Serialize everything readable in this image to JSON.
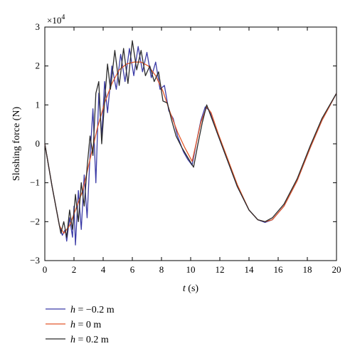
{
  "chart_data": {
    "type": "line",
    "xlabel": {
      "var": "t",
      "unit": " (s)"
    },
    "ylabel": "Sloshing force (N)",
    "y_multiplier": {
      "base": "×10",
      "exponent": "4"
    },
    "xlim": [
      0,
      20
    ],
    "ylim": [
      -3,
      3
    ],
    "xticks": [
      0,
      2,
      4,
      6,
      8,
      10,
      12,
      14,
      16,
      18,
      20
    ],
    "yticks": [
      -3,
      -2,
      -1,
      0,
      1,
      2,
      3
    ],
    "grid": false,
    "legend_position": "bottom-left, below plot",
    "series": [
      {
        "name": "h = −0.2 m",
        "legend": {
          "var": "h",
          "text": " = −0.2 m"
        },
        "color": "#3b3ba6",
        "points": [
          [
            0,
            0
          ],
          [
            0.5,
            -1.1
          ],
          [
            1,
            -2.1
          ],
          [
            1.2,
            -2.35
          ],
          [
            1.4,
            -2.2
          ],
          [
            1.5,
            -2.5
          ],
          [
            1.7,
            -1.9
          ],
          [
            1.9,
            -2.4
          ],
          [
            2.0,
            -1.6
          ],
          [
            2.1,
            -2.6
          ],
          [
            2.3,
            -1.2
          ],
          [
            2.5,
            -2.2
          ],
          [
            2.7,
            -0.8
          ],
          [
            2.9,
            -1.9
          ],
          [
            3.1,
            -0.3
          ],
          [
            3.3,
            0.9
          ],
          [
            3.5,
            -1.0
          ],
          [
            3.7,
            1.3
          ],
          [
            3.9,
            0.2
          ],
          [
            4.1,
            1.6
          ],
          [
            4.3,
            0.8
          ],
          [
            4.6,
            2.0
          ],
          [
            4.9,
            1.4
          ],
          [
            5.2,
            2.3
          ],
          [
            5.5,
            1.6
          ],
          [
            5.8,
            2.45
          ],
          [
            6.1,
            1.75
          ],
          [
            6.4,
            2.5
          ],
          [
            6.7,
            1.85
          ],
          [
            7.0,
            2.35
          ],
          [
            7.3,
            1.7
          ],
          [
            7.6,
            2.1
          ],
          [
            7.9,
            1.4
          ],
          [
            8.2,
            1.5
          ],
          [
            8.5,
            0.85
          ],
          [
            8.8,
            0.65
          ],
          [
            9.1,
            0.2
          ],
          [
            9.5,
            -0.2
          ],
          [
            9.8,
            -0.4
          ],
          [
            10.1,
            -0.55
          ],
          [
            10.4,
            0.05
          ],
          [
            10.7,
            0.6
          ],
          [
            11.0,
            0.95
          ],
          [
            11.3,
            0.85
          ],
          [
            11.8,
            0.3
          ],
          [
            12.5,
            -0.4
          ],
          [
            13.2,
            -1.1
          ],
          [
            14.0,
            -1.7
          ],
          [
            14.6,
            -1.95
          ],
          [
            15.1,
            -2.02
          ],
          [
            15.6,
            -1.95
          ],
          [
            16.4,
            -1.6
          ],
          [
            17.3,
            -0.95
          ],
          [
            18.2,
            -0.1
          ],
          [
            19.0,
            0.6
          ],
          [
            20.0,
            1.3
          ]
        ]
      },
      {
        "name": "h = 0 m",
        "legend": {
          "var": "h",
          "text": " = 0 m"
        },
        "color": "#e2582a",
        "points": [
          [
            0,
            0
          ],
          [
            0.5,
            -1.1
          ],
          [
            1.0,
            -2.1
          ],
          [
            1.3,
            -2.3
          ],
          [
            1.7,
            -2.1
          ],
          [
            2.1,
            -1.7
          ],
          [
            2.6,
            -1.2
          ],
          [
            3.1,
            -0.4
          ],
          [
            3.6,
            0.4
          ],
          [
            4.1,
            1.05
          ],
          [
            4.6,
            1.55
          ],
          [
            5.1,
            1.9
          ],
          [
            5.6,
            2.05
          ],
          [
            6.1,
            2.1
          ],
          [
            6.6,
            2.1
          ],
          [
            7.1,
            2.0
          ],
          [
            7.6,
            1.75
          ],
          [
            8.1,
            1.35
          ],
          [
            8.6,
            0.8
          ],
          [
            9.1,
            0.3
          ],
          [
            9.6,
            -0.1
          ],
          [
            10.1,
            -0.45
          ],
          [
            10.4,
            0.05
          ],
          [
            10.7,
            0.55
          ],
          [
            11.1,
            0.95
          ],
          [
            11.4,
            0.8
          ],
          [
            11.9,
            0.25
          ],
          [
            12.5,
            -0.35
          ],
          [
            13.2,
            -1.05
          ],
          [
            14.0,
            -1.7
          ],
          [
            14.6,
            -1.95
          ],
          [
            15.1,
            -2.0
          ],
          [
            15.6,
            -1.95
          ],
          [
            16.4,
            -1.6
          ],
          [
            17.3,
            -0.95
          ],
          [
            18.2,
            -0.1
          ],
          [
            19.0,
            0.6
          ],
          [
            20.0,
            1.3
          ]
        ]
      },
      {
        "name": "h = 0.2 m",
        "legend": {
          "var": "h",
          "text": " = 0.2 m"
        },
        "color": "#2b2b2b",
        "points": [
          [
            0,
            0
          ],
          [
            0.5,
            -1.1
          ],
          [
            1,
            -2.1
          ],
          [
            1.1,
            -2.3
          ],
          [
            1.3,
            -2.0
          ],
          [
            1.5,
            -2.4
          ],
          [
            1.7,
            -1.7
          ],
          [
            1.9,
            -2.2
          ],
          [
            2.1,
            -1.3
          ],
          [
            2.3,
            -2.0
          ],
          [
            2.5,
            -1.0
          ],
          [
            2.7,
            -1.6
          ],
          [
            2.9,
            -0.6
          ],
          [
            3.1,
            0.2
          ],
          [
            3.3,
            -0.3
          ],
          [
            3.5,
            1.3
          ],
          [
            3.7,
            1.6
          ],
          [
            3.9,
            0.0
          ],
          [
            4.1,
            1.1
          ],
          [
            4.3,
            2.05
          ],
          [
            4.5,
            1.4
          ],
          [
            4.8,
            2.4
          ],
          [
            5.1,
            1.5
          ],
          [
            5.4,
            2.45
          ],
          [
            5.7,
            1.55
          ],
          [
            6.0,
            2.65
          ],
          [
            6.3,
            1.9
          ],
          [
            6.6,
            2.4
          ],
          [
            6.9,
            1.75
          ],
          [
            7.2,
            2.0
          ],
          [
            7.5,
            1.6
          ],
          [
            7.8,
            1.85
          ],
          [
            8.1,
            1.1
          ],
          [
            8.4,
            1.05
          ],
          [
            8.7,
            0.6
          ],
          [
            9.0,
            0.2
          ],
          [
            9.4,
            -0.1
          ],
          [
            9.8,
            -0.35
          ],
          [
            10.2,
            -0.6
          ],
          [
            10.5,
            0.0
          ],
          [
            10.8,
            0.55
          ],
          [
            11.1,
            1.0
          ],
          [
            11.4,
            0.7
          ],
          [
            11.9,
            0.2
          ],
          [
            12.5,
            -0.4
          ],
          [
            13.2,
            -1.1
          ],
          [
            14.0,
            -1.7
          ],
          [
            14.6,
            -1.95
          ],
          [
            15.1,
            -2.0
          ],
          [
            15.6,
            -1.9
          ],
          [
            16.4,
            -1.55
          ],
          [
            17.3,
            -0.9
          ],
          [
            18.2,
            -0.05
          ],
          [
            19.0,
            0.65
          ],
          [
            20.0,
            1.3
          ]
        ]
      }
    ]
  }
}
